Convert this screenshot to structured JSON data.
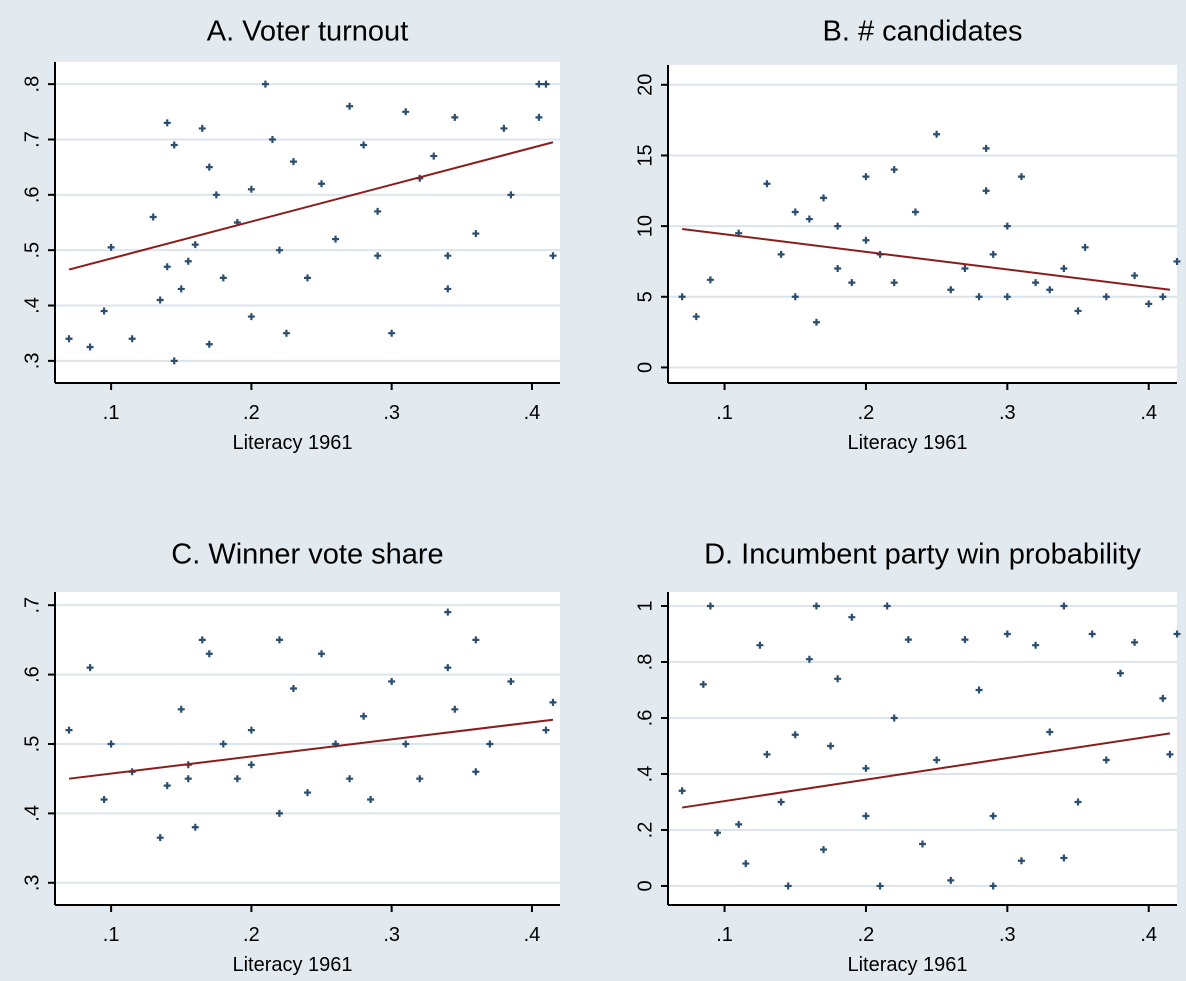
{
  "chart_data": [
    {
      "type": "scatter",
      "title": "A. Voter turnout",
      "x_label": "Literacy 1961",
      "xlim": [
        0.06,
        0.42
      ],
      "ylim": [
        0.26,
        0.84
      ],
      "grid": true,
      "xticks": [
        {
          "value": 0.1,
          "label": ".1"
        },
        {
          "value": 0.2,
          "label": ".2"
        },
        {
          "value": 0.3,
          "label": ".3"
        },
        {
          "value": 0.4,
          "label": ".4"
        }
      ],
      "yticks": [
        {
          "value": 0.3,
          "label": ".3"
        },
        {
          "value": 0.4,
          "label": ".4"
        },
        {
          "value": 0.5,
          "label": ".5"
        },
        {
          "value": 0.6,
          "label": ".6"
        },
        {
          "value": 0.7,
          "label": ".7"
        },
        {
          "value": 0.8,
          "label": ".8"
        }
      ],
      "series": [
        {
          "color": "#2b4d6e",
          "marker": "+",
          "x": [
            0.07,
            0.085,
            0.1,
            0.095,
            0.115,
            0.13,
            0.14,
            0.145,
            0.14,
            0.15,
            0.145,
            0.135,
            0.16,
            0.165,
            0.17,
            0.175,
            0.18,
            0.17,
            0.19,
            0.2,
            0.21,
            0.215,
            0.22,
            0.23,
            0.225,
            0.25,
            0.26,
            0.27,
            0.28,
            0.29,
            0.3,
            0.29,
            0.31,
            0.32,
            0.33,
            0.34,
            0.34,
            0.345,
            0.36,
            0.38,
            0.405,
            0.41,
            0.405,
            0.415,
            0.385,
            0.2,
            0.24,
            0.155
          ],
          "y": [
            0.34,
            0.325,
            0.505,
            0.39,
            0.34,
            0.56,
            0.73,
            0.69,
            0.47,
            0.43,
            0.3,
            0.41,
            0.51,
            0.72,
            0.65,
            0.6,
            0.45,
            0.33,
            0.55,
            0.38,
            0.8,
            0.7,
            0.5,
            0.66,
            0.35,
            0.62,
            0.52,
            0.76,
            0.69,
            0.57,
            0.35,
            0.49,
            0.75,
            0.63,
            0.67,
            0.43,
            0.49,
            0.74,
            0.53,
            0.72,
            0.8,
            0.8,
            0.74,
            0.49,
            0.6,
            0.61,
            0.45,
            0.48
          ]
        },
        {
          "color": "#8b1c1c",
          "marker": "line",
          "x": [
            0.07,
            0.415
          ],
          "y": [
            0.465,
            0.695
          ]
        }
      ]
    },
    {
      "type": "scatter",
      "title": "B. # candidates",
      "x_label": "Literacy 1961",
      "xlim": [
        0.06,
        0.42
      ],
      "ylim": [
        -1.1,
        21.4
      ],
      "grid": true,
      "xticks": [
        {
          "value": 0.1,
          "label": ".1"
        },
        {
          "value": 0.2,
          "label": ".2"
        },
        {
          "value": 0.3,
          "label": ".3"
        },
        {
          "value": 0.4,
          "label": ".4"
        }
      ],
      "yticks": [
        0,
        5,
        10,
        15,
        20
      ],
      "series": [
        {
          "color": "#2b4d6e",
          "marker": "+",
          "x": [
            0.07,
            0.08,
            0.09,
            0.11,
            0.13,
            0.14,
            0.15,
            0.15,
            0.165,
            0.17,
            0.18,
            0.19,
            0.2,
            0.21,
            0.22,
            0.22,
            0.235,
            0.25,
            0.26,
            0.27,
            0.28,
            0.285,
            0.285,
            0.29,
            0.3,
            0.31,
            0.3,
            0.32,
            0.33,
            0.34,
            0.35,
            0.355,
            0.37,
            0.39,
            0.4,
            0.41,
            0.42,
            0.18,
            0.16,
            0.2
          ],
          "y": [
            5,
            3.6,
            6.2,
            9.5,
            13,
            8,
            5,
            11,
            3.2,
            12,
            10,
            6,
            13.5,
            8,
            14,
            6,
            11,
            16.5,
            5.5,
            7,
            5,
            15.5,
            12.5,
            8,
            5,
            13.5,
            10,
            6,
            5.5,
            7,
            4,
            8.5,
            5,
            6.5,
            4.5,
            5,
            7.5,
            7,
            10.5,
            9
          ]
        },
        {
          "color": "#8b1c1c",
          "marker": "line",
          "x": [
            0.07,
            0.415
          ],
          "y": [
            9.8,
            5.5
          ]
        }
      ]
    },
    {
      "type": "scatter",
      "title": "C. Winner vote share",
      "x_label": "Literacy 1961",
      "xlim": [
        0.06,
        0.42
      ],
      "ylim": [
        0.268,
        0.719
      ],
      "grid": true,
      "xticks": [
        {
          "value": 0.1,
          "label": ".1"
        },
        {
          "value": 0.2,
          "label": ".2"
        },
        {
          "value": 0.3,
          "label": ".3"
        },
        {
          "value": 0.4,
          "label": ".4"
        }
      ],
      "yticks": [
        {
          "value": 0.3,
          "label": ".3"
        },
        {
          "value": 0.4,
          "label": ".4"
        },
        {
          "value": 0.5,
          "label": ".5"
        },
        {
          "value": 0.6,
          "label": ".6"
        },
        {
          "value": 0.7,
          "label": ".7"
        }
      ],
      "series": [
        {
          "color": "#2b4d6e",
          "marker": "+",
          "x": [
            0.07,
            0.085,
            0.1,
            0.095,
            0.115,
            0.135,
            0.14,
            0.15,
            0.155,
            0.16,
            0.165,
            0.17,
            0.18,
            0.19,
            0.2,
            0.22,
            0.22,
            0.23,
            0.24,
            0.25,
            0.26,
            0.27,
            0.28,
            0.285,
            0.3,
            0.31,
            0.32,
            0.34,
            0.34,
            0.345,
            0.36,
            0.36,
            0.37,
            0.385,
            0.41,
            0.415,
            0.2,
            0.155
          ],
          "y": [
            0.52,
            0.61,
            0.5,
            0.42,
            0.46,
            0.365,
            0.44,
            0.55,
            0.47,
            0.38,
            0.65,
            0.63,
            0.5,
            0.45,
            0.52,
            0.4,
            0.65,
            0.58,
            0.43,
            0.63,
            0.5,
            0.45,
            0.54,
            0.42,
            0.59,
            0.5,
            0.45,
            0.69,
            0.61,
            0.55,
            0.65,
            0.46,
            0.5,
            0.59,
            0.52,
            0.56,
            0.47,
            0.45
          ]
        },
        {
          "color": "#8b1c1c",
          "marker": "line",
          "x": [
            0.07,
            0.415
          ],
          "y": [
            0.45,
            0.535
          ]
        }
      ]
    },
    {
      "type": "scatter",
      "title": "D. Incumbent party win probability",
      "x_label": "Literacy 1961",
      "xlim": [
        0.06,
        0.42
      ],
      "ylim": [
        -0.068,
        1.05
      ],
      "grid": true,
      "xticks": [
        {
          "value": 0.1,
          "label": ".1"
        },
        {
          "value": 0.2,
          "label": ".2"
        },
        {
          "value": 0.3,
          "label": ".3"
        },
        {
          "value": 0.4,
          "label": ".4"
        }
      ],
      "yticks": [
        0,
        {
          "value": 0.2,
          "label": ".2"
        },
        {
          "value": 0.4,
          "label": ".4"
        },
        {
          "value": 0.6,
          "label": ".6"
        },
        {
          "value": 0.8,
          "label": ".8"
        },
        1
      ],
      "series": [
        {
          "color": "#2b4d6e",
          "marker": "+",
          "x": [
            0.07,
            0.085,
            0.09,
            0.095,
            0.11,
            0.115,
            0.125,
            0.13,
            0.14,
            0.145,
            0.15,
            0.16,
            0.165,
            0.17,
            0.175,
            0.18,
            0.19,
            0.2,
            0.21,
            0.215,
            0.22,
            0.23,
            0.24,
            0.25,
            0.26,
            0.27,
            0.28,
            0.29,
            0.29,
            0.3,
            0.31,
            0.32,
            0.33,
            0.34,
            0.34,
            0.35,
            0.36,
            0.37,
            0.38,
            0.39,
            0.41,
            0.415,
            0.42,
            0.2
          ],
          "y": [
            0.34,
            0.72,
            1.0,
            0.19,
            0.22,
            0.08,
            0.86,
            0.47,
            0.3,
            0.0,
            0.54,
            0.81,
            1.0,
            0.13,
            0.5,
            0.74,
            0.96,
            0.25,
            0.0,
            1.0,
            0.6,
            0.88,
            0.15,
            0.45,
            0.02,
            0.88,
            0.7,
            0.25,
            0.0,
            0.9,
            0.09,
            0.86,
            0.55,
            1.0,
            0.1,
            0.3,
            0.9,
            0.45,
            0.76,
            0.87,
            0.67,
            0.47,
            0.9,
            0.42
          ]
        },
        {
          "color": "#8b1c1c",
          "marker": "line",
          "x": [
            0.07,
            0.415
          ],
          "y": [
            0.28,
            0.545
          ]
        }
      ]
    }
  ]
}
